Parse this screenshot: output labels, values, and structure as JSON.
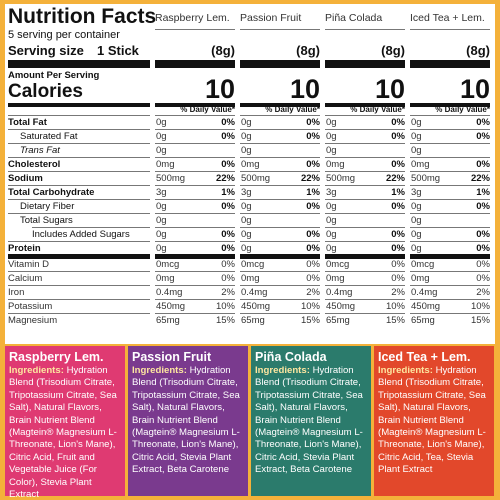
{
  "header": {
    "title": "Nutrition Facts",
    "servings": "5 serving per container",
    "serving_size_label": "Serving size",
    "serving_size_value": "1 Stick",
    "amount_per_serving": "Amount Per Serving",
    "calories_label": "Calories"
  },
  "nutrients": [
    "Total Fat",
    "Saturated Fat",
    "Trans Fat",
    "Cholesterol",
    "Sodium",
    "Total Carbohydrate",
    "Dietary Fiber",
    "Total Sugars",
    "Includes Added Sugars",
    "Protein",
    "Vitamin D",
    "Calcium",
    "Iron",
    "Potassium",
    "Magnesium"
  ],
  "columns": [
    {
      "name": "Raspberry Lem.",
      "serving": "(8g)",
      "calories": "10",
      "dv_header": "% Daily Value*",
      "values": [
        {
          "amount": "0g",
          "dv": "0%"
        },
        {
          "amount": "0g",
          "dv": "0%"
        },
        {
          "amount": "0g"
        },
        {
          "amount": "0mg",
          "dv": "0%"
        },
        {
          "amount": "500mg",
          "dv": "22%"
        },
        {
          "amount": "3g",
          "dv": "1%"
        },
        {
          "amount": "0g",
          "dv": "0%"
        },
        {
          "amount": "0g"
        },
        {
          "amount": "0g",
          "dv": "0%"
        },
        {
          "amount": "0g",
          "dv": "0%"
        },
        {
          "amount": "0mcg",
          "dv": "0%"
        },
        {
          "amount": "0mg",
          "dv": "0%"
        },
        {
          "amount": "0.4mg",
          "dv": "2%"
        },
        {
          "amount": "450mg",
          "dv": "10%"
        },
        {
          "amount": "65mg",
          "dv": "15%"
        }
      ]
    },
    {
      "name": "Passion Fruit",
      "serving": "(8g)",
      "calories": "10",
      "dv_header": "% Daily Value*",
      "values": [
        {
          "amount": "0g",
          "dv": "0%"
        },
        {
          "amount": "0g",
          "dv": "0%"
        },
        {
          "amount": "0g"
        },
        {
          "amount": "0mg",
          "dv": "0%"
        },
        {
          "amount": "500mg",
          "dv": "22%"
        },
        {
          "amount": "3g",
          "dv": "1%"
        },
        {
          "amount": "0g",
          "dv": "0%"
        },
        {
          "amount": "0g"
        },
        {
          "amount": "0g",
          "dv": "0%"
        },
        {
          "amount": "0g",
          "dv": "0%"
        },
        {
          "amount": "0mcg",
          "dv": "0%"
        },
        {
          "amount": "0mg",
          "dv": "0%"
        },
        {
          "amount": "0.4mg",
          "dv": "2%"
        },
        {
          "amount": "450mg",
          "dv": "10%"
        },
        {
          "amount": "65mg",
          "dv": "15%"
        }
      ]
    },
    {
      "name": "Piña Colada",
      "serving": "(8g)",
      "calories": "10",
      "dv_header": "% Daily Value*",
      "values": [
        {
          "amount": "0g",
          "dv": "0%"
        },
        {
          "amount": "0g",
          "dv": "0%"
        },
        {
          "amount": "0g"
        },
        {
          "amount": "0mg",
          "dv": "0%"
        },
        {
          "amount": "500mg",
          "dv": "22%"
        },
        {
          "amount": "3g",
          "dv": "1%"
        },
        {
          "amount": "0g",
          "dv": "0%"
        },
        {
          "amount": "0g"
        },
        {
          "amount": "0g",
          "dv": "0%"
        },
        {
          "amount": "0g",
          "dv": "0%"
        },
        {
          "amount": "0mcg",
          "dv": "0%"
        },
        {
          "amount": "0mg",
          "dv": "0%"
        },
        {
          "amount": "0.4mg",
          "dv": "2%"
        },
        {
          "amount": "450mg",
          "dv": "10%"
        },
        {
          "amount": "65mg",
          "dv": "15%"
        }
      ]
    },
    {
      "name": "Iced Tea + Lem.",
      "serving": "(8g)",
      "calories": "10",
      "dv_header": "% Daily Value*",
      "values": [
        {
          "amount": "0g",
          "dv": "0%"
        },
        {
          "amount": "0g",
          "dv": "0%"
        },
        {
          "amount": "0g"
        },
        {
          "amount": "0mg",
          "dv": "0%"
        },
        {
          "amount": "500mg",
          "dv": "22%"
        },
        {
          "amount": "3g",
          "dv": "1%"
        },
        {
          "amount": "0g",
          "dv": "0%"
        },
        {
          "amount": "0g"
        },
        {
          "amount": "0g",
          "dv": "0%"
        },
        {
          "amount": "0g",
          "dv": "0%"
        },
        {
          "amount": "0mcg",
          "dv": "0%"
        },
        {
          "amount": "0mg",
          "dv": "0%"
        },
        {
          "amount": "0.4mg",
          "dv": "2%"
        },
        {
          "amount": "450mg",
          "dv": "10%"
        },
        {
          "amount": "65mg",
          "dv": "15%"
        }
      ]
    }
  ],
  "ingredients": [
    {
      "name": "Raspberry Lem.",
      "label": "Ingredients:",
      "text": "Hydration Blend (Trisodium Citrate, Tripotassium Citrate, Sea Salt), Natural Flavors, Brain Nutrient Blend (Magtein® Magnesium L-Threonate, Lion's Mane), Citric Acid, Fruit and Vegetable Juice (For Color), Stevia Plant Extract"
    },
    {
      "name": "Passion Fruit",
      "label": "Ingredients:",
      "text": "Hydration Blend (Trisodium Citrate, Tripotassium Citrate, Sea Salt), Natural Flavors, Brain Nutrient Blend (Magtein® Magnesium L-Threonate, Lion's Mane), Citric Acid, Stevia Plant Extract, Beta Carotene"
    },
    {
      "name": "Piña Colada",
      "label": "Ingredients:",
      "text": "Hydration Blend (Trisodium Citrate, Tripotassium Citrate, Sea Salt), Natural Flavors, Brain Nutrient Blend (Magtein® Magnesium L-Threonate, Lion's Mane), Citric Acid, Stevia Plant Extract, Beta Carotene"
    },
    {
      "name": "Iced Tea + Lem.",
      "label": "Ingredients:",
      "text": "Hydration Blend (Trisodium Citrate, Tripotassium Citrate, Sea Salt), Natural Flavors, Brain Nutrient Blend (Magtein® Magnesium L-Threonate, Lion's Mane), Citric Acid, Tea, Stevia Plant Extract"
    }
  ]
}
